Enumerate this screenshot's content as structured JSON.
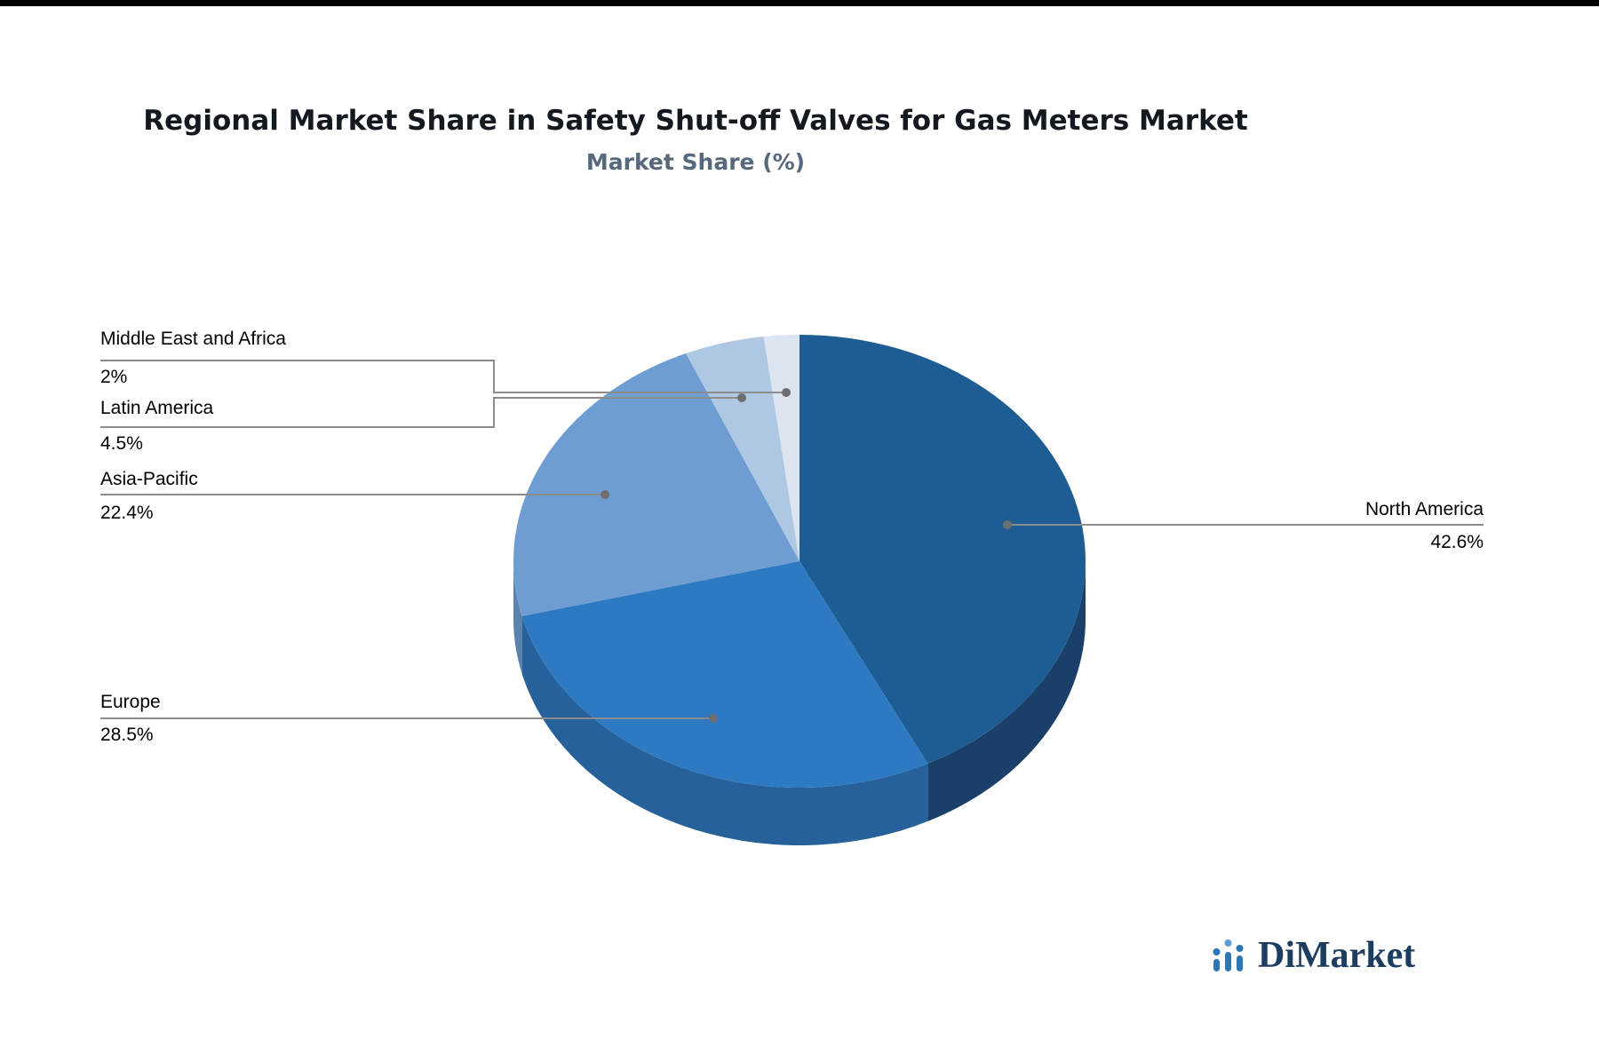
{
  "title": "Regional Market Share in Safety Shut-off Valves for Gas Meters Market",
  "subtitle": "Market Share (%)",
  "chart_data": {
    "type": "pie",
    "title": "Regional Market Share in Safety Shut-off Valves for Gas Meters Market",
    "subtitle": "Market Share (%)",
    "unit": "%",
    "start_angle_deg": 0,
    "direction": "clockwise",
    "effect_3d": true,
    "legend_position": "callout-labels",
    "slices": [
      {
        "label": "North America",
        "value": 42.6,
        "display": "42.6%",
        "color": "#1E5C94",
        "side_color": "#1A3F68"
      },
      {
        "label": "Europe",
        "value": 28.5,
        "display": "28.5%",
        "color": "#2E7AC2",
        "side_color": "#26619B"
      },
      {
        "label": "Asia-Pacific",
        "value": 22.4,
        "display": "22.4%",
        "color": "#6D9DD3",
        "side_color": "#5A82AC"
      },
      {
        "label": "Latin America",
        "value": 4.5,
        "display": "4.5%",
        "color": "#AEC8E4",
        "side_color": "#8FA9C6"
      },
      {
        "label": "Middle East and Africa",
        "value": 2,
        "display": "2%",
        "color": "#DCE4F0",
        "side_color": "#B9C4D4"
      }
    ],
    "callout_line_color": "#8c8c8c",
    "callout_dot_color": "#6e6e6e"
  },
  "brand": {
    "name": "DiMarket",
    "color": "#2E75B6",
    "accent_color": "#5B9BD5"
  }
}
